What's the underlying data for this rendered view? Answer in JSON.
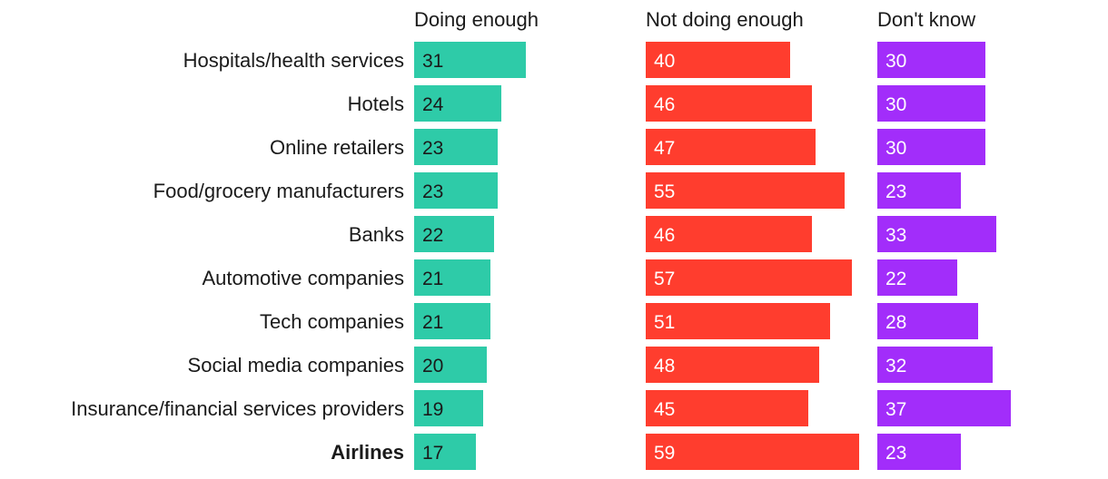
{
  "chart_data": {
    "type": "bar",
    "orientation": "horizontal",
    "layout": "small-multiples",
    "categories": [
      "Hospitals/health services",
      "Hotels",
      "Online retailers",
      "Food/grocery manufacturers",
      "Banks",
      "Automotive companies",
      "Tech companies",
      "Social media companies",
      "Insurance/financial services providers",
      "Airlines"
    ],
    "highlighted_category": "Airlines",
    "series": [
      {
        "name": "Doing enough",
        "color": "#2ecba8",
        "value_text_color": "#1a1a1a",
        "values": [
          31,
          24,
          23,
          23,
          22,
          21,
          21,
          20,
          19,
          17
        ]
      },
      {
        "name": "Not doing enough",
        "color": "#ff3d2e",
        "value_text_color": "#ffffff",
        "values": [
          40,
          46,
          47,
          55,
          46,
          57,
          51,
          48,
          45,
          59
        ]
      },
      {
        "name": "Don't know",
        "color": "#a22dfa",
        "value_text_color": "#ffffff",
        "values": [
          30,
          30,
          30,
          23,
          33,
          22,
          28,
          32,
          37,
          23
        ]
      }
    ],
    "title": "",
    "xlabel": "",
    "ylabel": "",
    "xlim": [
      0,
      60
    ],
    "grid": false,
    "legend": "column-headers"
  }
}
